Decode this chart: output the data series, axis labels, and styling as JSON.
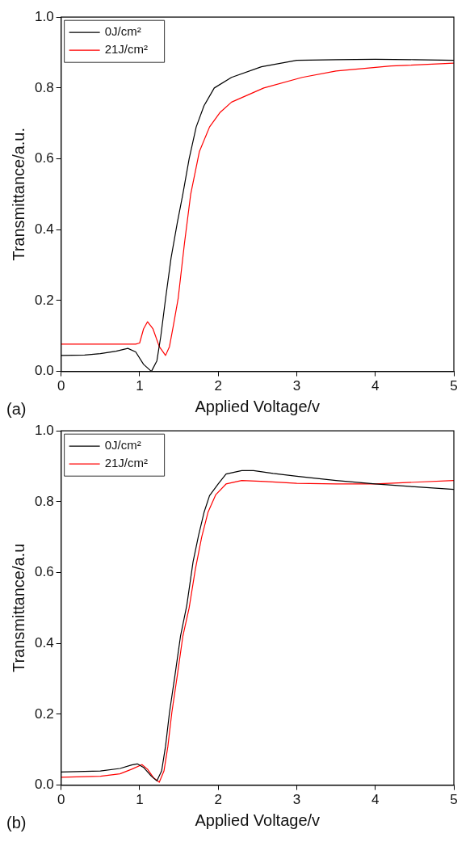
{
  "chart_data": [
    {
      "type": "line",
      "xlabel": "Applied Voltage/v",
      "ylabel": "Transmittance/a.u.",
      "annotations": [
        "(a)"
      ],
      "legend": "top left",
      "grid": false,
      "marker": "none",
      "line_style": "solid",
      "xlim": [
        0,
        5
      ],
      "xticks": [
        0,
        1,
        2,
        3,
        4,
        5
      ],
      "ylim": [
        0,
        1
      ],
      "yticks": [
        {
          "value": 0,
          "label": "0.0"
        },
        {
          "value": 0.2,
          "label": "0.2"
        },
        {
          "value": 0.4,
          "label": "0.4"
        },
        {
          "value": 0.6,
          "label": "0.6"
        },
        {
          "value": 0.8,
          "label": "0.8"
        },
        {
          "value": 1,
          "label": "1.0"
        }
      ],
      "series": [
        {
          "name": "0J/cm²",
          "color": "#000000",
          "x": [
            0,
            0.3,
            0.5,
            0.7,
            0.85,
            0.95,
            1.05,
            1.15,
            1.22,
            1.27,
            1.33,
            1.4,
            1.48,
            1.55,
            1.63,
            1.72,
            1.82,
            1.95,
            2.17,
            2.55,
            3,
            3.5,
            4,
            4.5,
            5
          ],
          "values": [
            0.045,
            0.046,
            0.05,
            0.057,
            0.065,
            0.055,
            0.02,
            0,
            0.03,
            0.1,
            0.205,
            0.32,
            0.42,
            0.5,
            0.6,
            0.69,
            0.75,
            0.8,
            0.83,
            0.86,
            0.878,
            0.88,
            0.881,
            0.88,
            0.878
          ]
        },
        {
          "name": "21J/cm²",
          "color": "#ff0000",
          "x": [
            0,
            0.5,
            0.95,
            1.0,
            1.05,
            1.1,
            1.17,
            1.25,
            1.33,
            1.38,
            1.43,
            1.49,
            1.57,
            1.65,
            1.76,
            1.89,
            2.02,
            2.17,
            2.58,
            3.07,
            3.5,
            4.2,
            5
          ],
          "values": [
            0.077,
            0.077,
            0.077,
            0.08,
            0.12,
            0.14,
            0.12,
            0.07,
            0.045,
            0.07,
            0.13,
            0.205,
            0.36,
            0.5,
            0.62,
            0.69,
            0.73,
            0.76,
            0.8,
            0.83,
            0.848,
            0.862,
            0.87
          ]
        }
      ]
    },
    {
      "type": "line",
      "xlabel": "Applied Voltage/v",
      "ylabel": "Transmittance/a.u",
      "annotations": [
        "(b)"
      ],
      "legend": "top left",
      "grid": false,
      "marker": "none",
      "line_style": "solid",
      "xlim": [
        0,
        5
      ],
      "xticks": [
        0,
        1,
        2,
        3,
        4,
        5
      ],
      "ylim": [
        0,
        1
      ],
      "yticks": [
        {
          "value": 0,
          "label": "0.0"
        },
        {
          "value": 0.2,
          "label": "0.2"
        },
        {
          "value": 0.4,
          "label": "0.4"
        },
        {
          "value": 0.6,
          "label": "0.6"
        },
        {
          "value": 0.8,
          "label": "0.8"
        },
        {
          "value": 1,
          "label": "1.0"
        }
      ],
      "series": [
        {
          "name": "0J/cm²",
          "color": "#000000",
          "x": [
            0,
            0.5,
            0.75,
            0.9,
            0.97,
            1.05,
            1.15,
            1.22,
            1.28,
            1.33,
            1.38,
            1.45,
            1.52,
            1.6,
            1.68,
            1.75,
            1.82,
            1.89,
            2.0,
            2.1,
            2.3,
            2.45,
            2.7,
            3,
            3.5,
            4,
            4.5,
            5
          ],
          "values": [
            0.037,
            0.04,
            0.047,
            0.057,
            0.06,
            0.05,
            0.025,
            0.012,
            0.04,
            0.11,
            0.205,
            0.31,
            0.42,
            0.507,
            0.63,
            0.705,
            0.77,
            0.817,
            0.85,
            0.878,
            0.888,
            0.888,
            0.88,
            0.872,
            0.86,
            0.85,
            0.842,
            0.835
          ]
        },
        {
          "name": "21J/cm²",
          "color": "#ff0000",
          "x": [
            0,
            0.5,
            0.75,
            0.9,
            1.03,
            1.1,
            1.18,
            1.25,
            1.31,
            1.36,
            1.41,
            1.48,
            1.55,
            1.63,
            1.71,
            1.79,
            1.87,
            1.97,
            2.1,
            2.3,
            2.6,
            3,
            3.5,
            4,
            4.5,
            5
          ],
          "values": [
            0.022,
            0.025,
            0.032,
            0.045,
            0.058,
            0.045,
            0.02,
            0.008,
            0.04,
            0.11,
            0.205,
            0.31,
            0.42,
            0.5,
            0.61,
            0.7,
            0.77,
            0.82,
            0.85,
            0.86,
            0.857,
            0.852,
            0.85,
            0.85,
            0.855,
            0.86
          ]
        }
      ]
    }
  ]
}
